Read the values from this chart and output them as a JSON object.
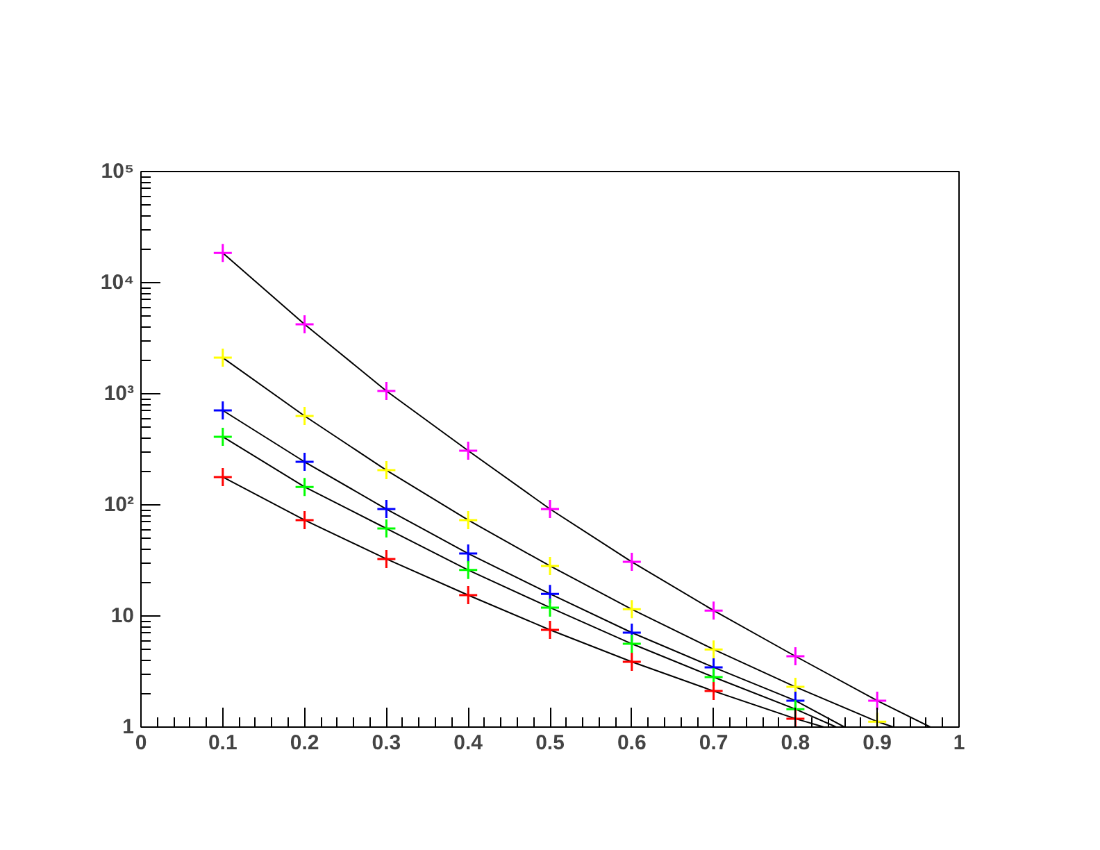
{
  "chart_data": {
    "type": "scatter",
    "log": "y",
    "grid": false,
    "marker": "cross",
    "xlim": [
      0,
      1
    ],
    "ylim": [
      1,
      100000
    ],
    "xticks": [
      0,
      0.1,
      0.2,
      0.3,
      0.4,
      0.5,
      0.6,
      0.7,
      0.8,
      0.9,
      1
    ],
    "yticks": [
      1,
      10,
      {
        "value": 100,
        "label": "10²"
      },
      {
        "value": 1000,
        "label": "10³"
      },
      {
        "value": 10000,
        "label": "10⁴"
      },
      {
        "value": 100000,
        "label": "10⁵"
      }
    ],
    "x": [
      0.1,
      0.2,
      0.3,
      0.4,
      0.5,
      0.6,
      0.7,
      0.8,
      0.9
    ],
    "series": [
      {
        "color": "#ff00ff",
        "values": [
          18500,
          4220,
          1060,
          307,
          91.7,
          30.7,
          11.2,
          4.34,
          1.73
        ]
      },
      {
        "color": "#ffff00",
        "values": [
          2110,
          631,
          205,
          72.9,
          28.2,
          11.5,
          5.0,
          2.3,
          1.12
        ]
      },
      {
        "color": "#0000ff",
        "values": [
          708,
          244,
          91.7,
          36.5,
          15.8,
          7.08,
          3.45,
          1.73,
          null
        ]
      },
      {
        "color": "#00ff00",
        "values": [
          410,
          145,
          61.3,
          25.9,
          11.9,
          5.62,
          2.82,
          1.45,
          null
        ]
      },
      {
        "color": "#ff0000",
        "values": [
          178,
          72.9,
          32.6,
          15.4,
          7.5,
          3.87,
          2.11,
          1.19,
          null
        ]
      },
      {
        "type": "line",
        "marker": "none",
        "color": "#000000",
        "x": [
          0.1,
          0.2,
          0.3,
          0.4,
          0.5,
          0.6,
          0.7,
          0.8,
          0.9,
          0.965
        ],
        "values": [
          18500,
          4220,
          1060,
          307,
          91.7,
          30.7,
          11.2,
          4.34,
          1.73,
          1
        ]
      },
      {
        "type": "line",
        "marker": "none",
        "color": "#000000",
        "x": [
          0.1,
          0.2,
          0.3,
          0.4,
          0.5,
          0.6,
          0.7,
          0.8,
          0.9,
          0.92
        ],
        "values": [
          2110,
          631,
          205,
          72.9,
          28.2,
          11.5,
          5.0,
          2.3,
          1.12,
          1
        ]
      },
      {
        "type": "line",
        "marker": "none",
        "color": "#000000",
        "x": [
          0.1,
          0.2,
          0.3,
          0.4,
          0.5,
          0.6,
          0.7,
          0.8,
          0.86
        ],
        "values": [
          708,
          244,
          91.7,
          36.5,
          15.8,
          7.08,
          3.45,
          1.73,
          1
        ]
      },
      {
        "type": "line",
        "marker": "none",
        "color": "#000000",
        "x": [
          0.1,
          0.2,
          0.3,
          0.4,
          0.5,
          0.6,
          0.7,
          0.8,
          0.85
        ],
        "values": [
          410,
          145,
          61.3,
          25.9,
          11.9,
          5.62,
          2.82,
          1.45,
          1
        ]
      },
      {
        "type": "line",
        "marker": "none",
        "color": "#000000",
        "x": [
          0.1,
          0.2,
          0.3,
          0.4,
          0.5,
          0.6,
          0.7,
          0.8,
          0.835
        ],
        "values": [
          178,
          72.9,
          32.6,
          15.4,
          7.5,
          3.87,
          2.11,
          1.19,
          1
        ]
      }
    ]
  }
}
